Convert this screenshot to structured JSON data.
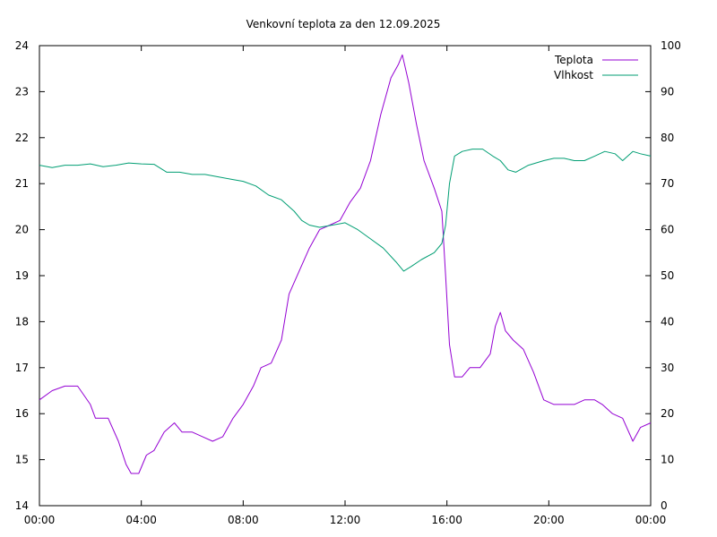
{
  "chart_data": {
    "type": "line",
    "title": "Venkovní teplota za den 12.09.2025",
    "xlabel": "",
    "ylabel": "",
    "y2label": "",
    "grid": false,
    "legend_position": "top-right",
    "x_ticks": [
      "00:00",
      "04:00",
      "08:00",
      "12:00",
      "16:00",
      "20:00",
      "00:00"
    ],
    "xlim_hours": [
      0,
      24
    ],
    "ylim": [
      14,
      24
    ],
    "y_ticks": [
      14,
      15,
      16,
      17,
      18,
      19,
      20,
      21,
      22,
      23,
      24
    ],
    "y2lim": [
      0,
      100
    ],
    "y2_ticks": [
      0,
      10,
      20,
      30,
      40,
      50,
      60,
      70,
      80,
      90,
      100
    ],
    "series": [
      {
        "name": "Teplota",
        "color": "#9400D3",
        "axis": "left",
        "x": [
          0,
          0.5,
          1,
          1.5,
          2,
          2.2,
          2.7,
          3.1,
          3.4,
          3.6,
          3.9,
          4.2,
          4.5,
          4.9,
          5.3,
          5.6,
          6,
          6.4,
          6.8,
          7.2,
          7.6,
          8,
          8.4,
          8.7,
          9.1,
          9.5,
          9.8,
          10.2,
          10.6,
          11,
          11.4,
          11.8,
          12.2,
          12.6,
          13,
          13.4,
          13.8,
          14.1,
          14.25,
          14.5,
          14.8,
          15.1,
          15.5,
          15.8,
          15.95,
          16.1,
          16.3,
          16.6,
          16.9,
          17.3,
          17.7,
          17.9,
          18.1,
          18.3,
          18.6,
          19,
          19.4,
          19.8,
          20.2,
          20.6,
          21,
          21.4,
          21.8,
          22.1,
          22.5,
          22.9,
          23.3,
          23.6,
          24
        ],
        "values": [
          16.3,
          16.5,
          16.6,
          16.6,
          16.2,
          15.9,
          15.9,
          15.4,
          14.9,
          14.7,
          14.7,
          15.1,
          15.2,
          15.6,
          15.8,
          15.6,
          15.6,
          15.5,
          15.4,
          15.5,
          15.9,
          16.2,
          16.6,
          17.0,
          17.1,
          17.6,
          18.6,
          19.1,
          19.6,
          20.0,
          20.1,
          20.2,
          20.6,
          20.9,
          21.5,
          22.5,
          23.3,
          23.6,
          23.8,
          23.2,
          22.3,
          21.5,
          20.9,
          20.4,
          19.0,
          17.5,
          16.8,
          16.8,
          17.0,
          17.0,
          17.3,
          17.9,
          18.2,
          17.8,
          17.6,
          17.4,
          16.9,
          16.3,
          16.2,
          16.2,
          16.2,
          16.3,
          16.3,
          16.2,
          16.0,
          15.9,
          15.4,
          15.7,
          15.8
        ]
      },
      {
        "name": "Vlhkost",
        "color": "#009E73",
        "axis": "right",
        "x": [
          0,
          0.5,
          1,
          1.5,
          2,
          2.5,
          3,
          3.5,
          4,
          4.5,
          5,
          5.5,
          6,
          6.5,
          7,
          7.5,
          8,
          8.5,
          9,
          9.5,
          10,
          10.3,
          10.6,
          11,
          11.5,
          12,
          12.5,
          13,
          13.5,
          14,
          14.3,
          14.6,
          15,
          15.5,
          15.8,
          15.95,
          16.1,
          16.3,
          16.6,
          17,
          17.4,
          17.8,
          18.1,
          18.4,
          18.7,
          19.2,
          19.8,
          20.2,
          20.6,
          21,
          21.4,
          21.8,
          22.2,
          22.6,
          22.9,
          23.3,
          23.6,
          24
        ],
        "values": [
          74,
          73.5,
          74,
          74,
          74.3,
          73.7,
          74,
          74.5,
          74.3,
          74.2,
          72.5,
          72.5,
          72,
          72,
          71.5,
          71,
          70.5,
          69.5,
          67.5,
          66.5,
          64,
          62,
          61,
          60.5,
          61,
          61.5,
          60,
          58,
          56,
          53,
          51,
          52,
          53.5,
          55,
          57,
          61,
          70,
          76,
          77,
          77.5,
          77.5,
          76,
          75,
          73,
          72.5,
          74,
          75,
          75.5,
          75.5,
          75,
          75,
          76,
          77,
          76.5,
          75,
          77,
          76.5,
          76
        ]
      }
    ]
  }
}
